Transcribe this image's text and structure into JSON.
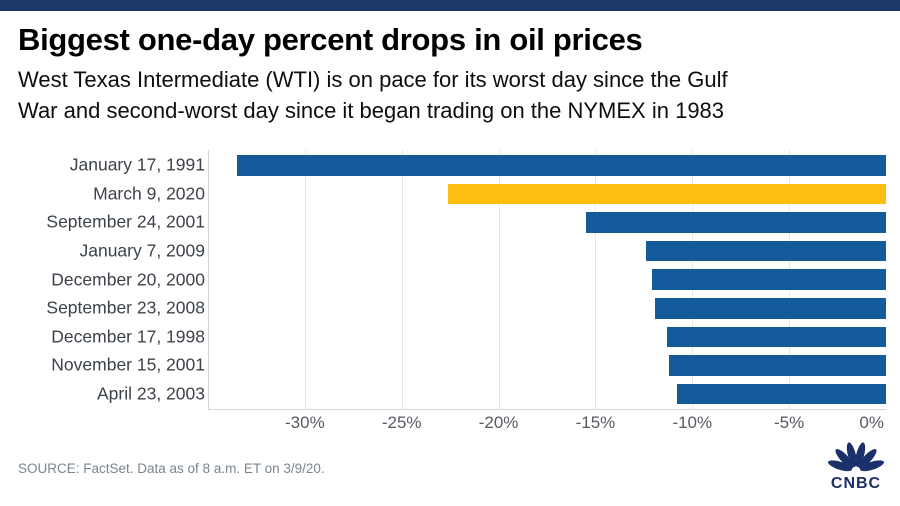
{
  "page": {
    "accent_bar_color": "#1b3a6b",
    "background": "#ffffff"
  },
  "header": {
    "title": "Biggest one-day percent drops in oil prices",
    "subtitle_lines": [
      "West Texas Intermediate (WTI) is on pace for its worst day since the Gulf",
      "War and second-worst day since it began trading on the NYMEX in 1983"
    ]
  },
  "chart_data": {
    "type": "bar",
    "orientation": "horizontal",
    "title": "Biggest one-day percent drops in oil prices",
    "categories": [
      "January 17, 1991",
      "March 9, 2020",
      "September 24, 2001",
      "January 7, 2009",
      "December 20, 2000",
      "September 23, 2008",
      "December 17, 1998",
      "November 15, 2001",
      "April 23, 2003"
    ],
    "values": [
      -33.5,
      -22.6,
      -15.5,
      -12.4,
      -12.1,
      -11.9,
      -11.3,
      -11.2,
      -10.8
    ],
    "unit": "%",
    "highlight_index": 1,
    "xlim": [
      -35,
      0
    ],
    "x_ticks": [
      -30,
      -25,
      -20,
      -15,
      -10,
      -5,
      0
    ],
    "x_tick_labels": [
      "-30%",
      "-25%",
      "-20%",
      "-15%",
      "-10%",
      "-5%",
      "0%"
    ],
    "grid": true,
    "legend": "none",
    "xlabel": "",
    "ylabel": "",
    "colors": {
      "bar": "#135b9b",
      "highlight": "#ffbd11",
      "grid": "#e7e7e7",
      "axis_line": "#d8d8d8",
      "category_label": "#3d434b",
      "tick_label": "#565b62"
    }
  },
  "footer": {
    "source": "SOURCE: FactSet. Data as of 8 a.m. ET on 3/9/20.",
    "logo_text": "CNBC"
  }
}
